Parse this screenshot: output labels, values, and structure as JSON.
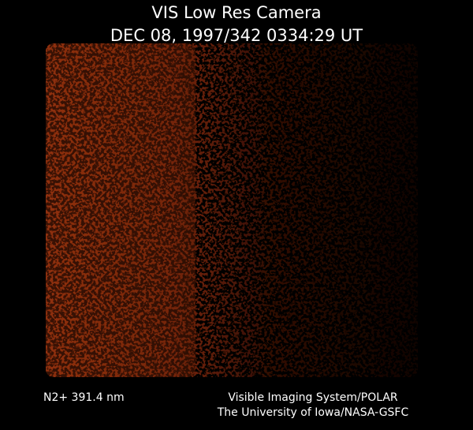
{
  "header": {
    "title": "VIS Low Res Camera",
    "timestamp": "DEC 08, 1997/342 0334:29 UT"
  },
  "footer": {
    "filter": "N2+ 391.4 nm",
    "instrument": "Visible Imaging System/POLAR",
    "institution": "The University of Iowa/NASA-GSFC"
  }
}
